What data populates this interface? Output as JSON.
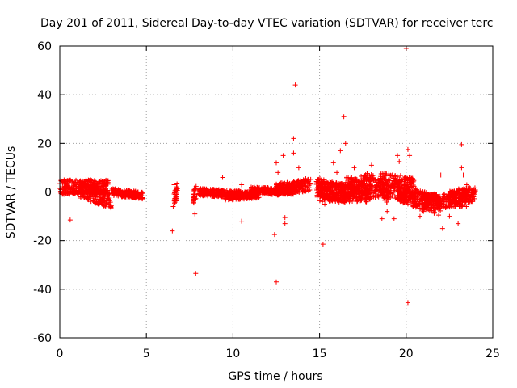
{
  "chart_data": {
    "type": "scatter",
    "title": "Day 201 of 2011, Sidereal Day-to-day VTEC variation (SDTVAR) for receiver terc",
    "xlabel": "GPS time / hours",
    "ylabel": "SDTVAR / TECUs",
    "xlim": [
      0,
      25
    ],
    "ylim": [
      -60,
      60
    ],
    "xticks": [
      0,
      5,
      10,
      15,
      20,
      25
    ],
    "yticks": [
      -60,
      -40,
      -20,
      0,
      20,
      40,
      60
    ],
    "grid": true,
    "marker": "+",
    "colors": {
      "series": "#ff0000",
      "grid": "#a0a0a0",
      "axis": "#000000"
    },
    "series": [
      {
        "name": "SDTVAR",
        "bands": [
          [
            0.0,
            2.8,
            2.0,
            2.0,
            3.0
          ],
          [
            1.2,
            3.0,
            1.0,
            -3.5,
            3.5
          ],
          [
            3.0,
            4.8,
            0.0,
            -1.5,
            1.5
          ],
          [
            6.6,
            6.8,
            -3.0,
            1.0,
            3.0
          ],
          [
            7.7,
            7.9,
            -2.5,
            1.0,
            3.0
          ],
          [
            8.0,
            10.5,
            0.0,
            -1.0,
            1.5
          ],
          [
            9.5,
            11.5,
            -2.0,
            -1.0,
            1.5
          ],
          [
            11.0,
            13.5,
            0.5,
            0.5,
            1.5
          ],
          [
            12.5,
            14.5,
            1.0,
            3.0,
            2.5
          ],
          [
            14.8,
            16.5,
            2.0,
            -1.0,
            4.0
          ],
          [
            15.0,
            17.5,
            0.0,
            0.0,
            4.0
          ],
          [
            16.5,
            18.0,
            3.0,
            -1.0,
            4.0
          ],
          [
            17.5,
            19.0,
            4.0,
            0.0,
            4.5
          ],
          [
            18.5,
            20.5,
            3.0,
            1.0,
            5.0
          ],
          [
            19.5,
            22.0,
            0.0,
            -6.0,
            4.0
          ],
          [
            21.0,
            23.5,
            -4.0,
            -3.0,
            3.0
          ],
          [
            22.5,
            24.0,
            -2.0,
            -1.0,
            3.0
          ]
        ],
        "points": [
          [
            0.25,
            5.0
          ],
          [
            0.6,
            -11.5
          ],
          [
            6.5,
            -16.0
          ],
          [
            6.6,
            3.0
          ],
          [
            6.55,
            -6.0
          ],
          [
            7.85,
            -33.5
          ],
          [
            7.8,
            -9.0
          ],
          [
            9.4,
            6.0
          ],
          [
            10.5,
            -12.0
          ],
          [
            10.5,
            3.0
          ],
          [
            12.4,
            -17.5
          ],
          [
            12.5,
            -37.0
          ],
          [
            12.5,
            12.0
          ],
          [
            12.6,
            8.0
          ],
          [
            12.9,
            15.0
          ],
          [
            13.0,
            -10.5
          ],
          [
            13.0,
            -13.0
          ],
          [
            13.5,
            22.0
          ],
          [
            13.6,
            44.0
          ],
          [
            13.5,
            16.0
          ],
          [
            13.8,
            10.0
          ],
          [
            14.2,
            5.5
          ],
          [
            15.2,
            -21.5
          ],
          [
            15.3,
            -5.0
          ],
          [
            15.8,
            12.0
          ],
          [
            16.2,
            17.0
          ],
          [
            16.4,
            31.0
          ],
          [
            16.5,
            20.0
          ],
          [
            16.0,
            8.0
          ],
          [
            17.0,
            10.0
          ],
          [
            17.4,
            6.5
          ],
          [
            18.0,
            11.0
          ],
          [
            18.6,
            -11.0
          ],
          [
            18.9,
            -8.0
          ],
          [
            19.2,
            7.0
          ],
          [
            19.3,
            -11.0
          ],
          [
            19.5,
            15.0
          ],
          [
            19.6,
            12.5
          ],
          [
            20.0,
            59.0
          ],
          [
            20.1,
            -45.5
          ],
          [
            20.1,
            17.5
          ],
          [
            20.2,
            15.0
          ],
          [
            20.8,
            -10.0
          ],
          [
            21.0,
            -8.0
          ],
          [
            22.0,
            7.0
          ],
          [
            22.1,
            -15.0
          ],
          [
            22.5,
            -10.0
          ],
          [
            23.2,
            19.5
          ],
          [
            23.2,
            10.0
          ],
          [
            23.3,
            7.0
          ],
          [
            23.0,
            -13.0
          ],
          [
            23.5,
            3.0
          ],
          [
            23.9,
            -2.0
          ]
        ]
      }
    ]
  }
}
